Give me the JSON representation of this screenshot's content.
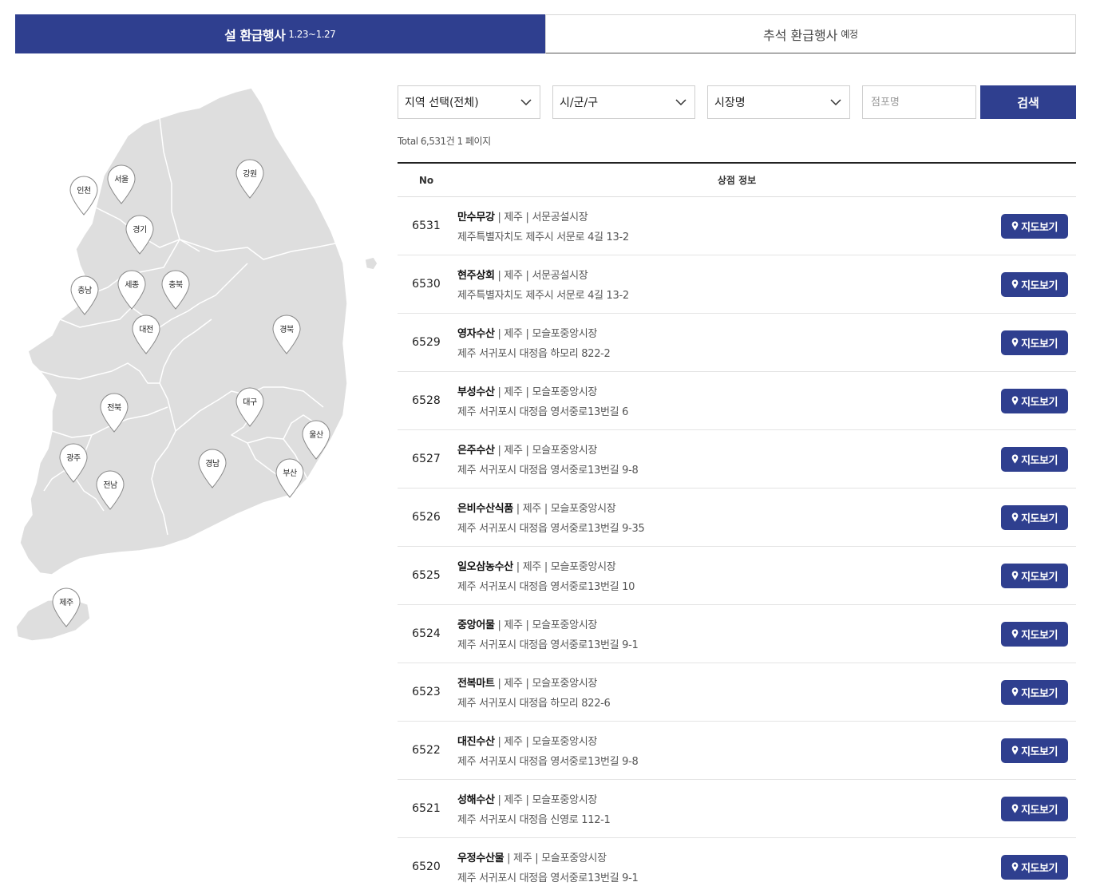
{
  "tabs": [
    {
      "label": "설 환급행사",
      "sub": "1.23~1.27",
      "active": true
    },
    {
      "label": "추석 환급행사",
      "sub": "예정",
      "active": false
    }
  ],
  "map": {
    "regions": [
      "인천",
      "서울",
      "강원",
      "경기",
      "충남",
      "세종",
      "충북",
      "대전",
      "경북",
      "전북",
      "대구",
      "울산",
      "광주",
      "경남",
      "부산",
      "전남",
      "제주"
    ]
  },
  "search": {
    "region_select": "지역 선택(전체)",
    "city_select": "시/군/구",
    "market_select": "시장명",
    "store_placeholder": "점포명",
    "button": "검색"
  },
  "total": "Total 6,531건 1 페이지",
  "table": {
    "col_no": "No",
    "col_info": "상점 정보",
    "map_button": "지도보기",
    "rows": [
      {
        "no": "6531",
        "name": "만수무강",
        "meta": " | 제주 | 서문공설시장",
        "addr": "제주특별자치도 제주시 서문로 4길 13-2"
      },
      {
        "no": "6530",
        "name": "현주상회",
        "meta": " | 제주 | 서문공설시장",
        "addr": "제주특별자치도 제주시 서문로 4길 13-2"
      },
      {
        "no": "6529",
        "name": "영자수산",
        "meta": " | 제주 | 모슬포중앙시장",
        "addr": "제주 서귀포시 대정읍 하모리 822-2"
      },
      {
        "no": "6528",
        "name": "부성수산",
        "meta": " | 제주 | 모슬포중앙시장",
        "addr": "제주 서귀포시 대정읍 영서중로13번길 6"
      },
      {
        "no": "6527",
        "name": "은주수산",
        "meta": " | 제주 | 모슬포중앙시장",
        "addr": "제주 서귀포시 대정읍 영서중로13번길 9-8"
      },
      {
        "no": "6526",
        "name": "은비수산식품",
        "meta": " | 제주 | 모슬포중앙시장",
        "addr": "제주 서귀포시 대정읍 영서중로13번길 9-35"
      },
      {
        "no": "6525",
        "name": "일오삼농수산",
        "meta": " | 제주 | 모슬포중앙시장",
        "addr": "제주 서귀포시 대정읍 영서중로13번길 10"
      },
      {
        "no": "6524",
        "name": "중앙어물",
        "meta": " | 제주 | 모슬포중앙시장",
        "addr": "제주 서귀포시 대정읍 영서중로13번길 9-1"
      },
      {
        "no": "6523",
        "name": "전복마트",
        "meta": " | 제주 | 모슬포중앙시장",
        "addr": "제주 서귀포시 대정읍 하모리 822-6"
      },
      {
        "no": "6522",
        "name": "대진수산",
        "meta": " | 제주 | 모슬포중앙시장",
        "addr": "제주 서귀포시 대정읍 영서중로13번길 9-8"
      },
      {
        "no": "6521",
        "name": "성해수산",
        "meta": " | 제주 | 모슬포중앙시장",
        "addr": "제주 서귀포시 대정읍 신영로 112-1"
      },
      {
        "no": "6520",
        "name": "우정수산물",
        "meta": " | 제주 | 모슬포중앙시장",
        "addr": "제주 서귀포시 대정읍 영서중로13번길 9-1"
      }
    ]
  }
}
